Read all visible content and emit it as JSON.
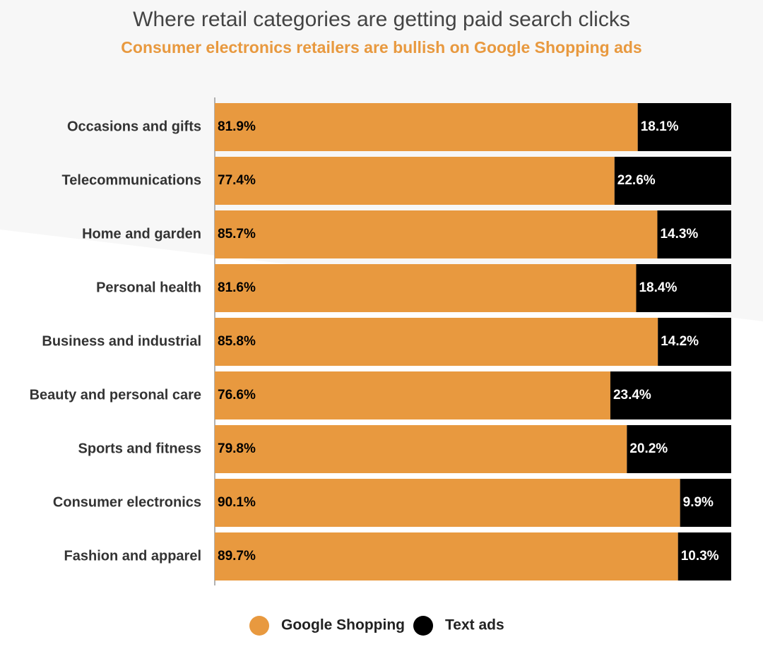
{
  "chart_data": {
    "type": "stacked-bar-horizontal",
    "title": "Where retail categories are getting paid search clicks",
    "subtitle": "Consumer electronics retailers are bullish on Google Shopping ads",
    "categories": [
      "Occasions and gifts",
      "Telecommunications",
      "Home and garden",
      "Personal health",
      "Business and industrial",
      "Beauty and personal care",
      "Sports and fitness",
      "Consumer electronics",
      "Fashion and apparel"
    ],
    "series": [
      {
        "name": "Google Shopping",
        "color": "#e8993f",
        "values": [
          81.9,
          77.4,
          85.7,
          81.6,
          85.8,
          76.6,
          79.8,
          90.1,
          89.7
        ],
        "value_labels": [
          "81.9%",
          "77.4%",
          "85.7%",
          "81.6%",
          "85.8%",
          "76.6%",
          "79.8%",
          "90.1%",
          "89.7%"
        ]
      },
      {
        "name": "Text ads",
        "color": "#000000",
        "values": [
          18.1,
          22.6,
          14.3,
          18.4,
          14.2,
          23.4,
          20.2,
          9.9,
          10.3
        ],
        "value_labels": [
          "18.1%",
          "22.6%",
          "14.3%",
          "18.4%",
          "14.2%",
          "23.4%",
          "20.2%",
          "9.9%",
          "10.3%"
        ]
      }
    ],
    "xlim": [
      0,
      100
    ],
    "legend": "bottom"
  }
}
